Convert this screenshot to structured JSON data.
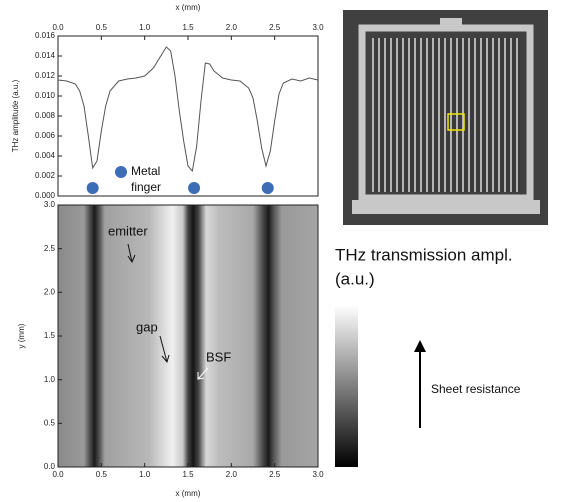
{
  "chart_data": [
    {
      "type": "line",
      "xlabel": "x (mm)",
      "ylabel": "THz amplitude (a.u.)",
      "color": "#555555",
      "x": [
        0,
        0.1,
        0.2,
        0.25,
        0.3,
        0.35,
        0.4,
        0.45,
        0.5,
        0.55,
        0.6,
        0.7,
        0.8,
        0.9,
        1.0,
        1.1,
        1.2,
        1.25,
        1.3,
        1.35,
        1.4,
        1.45,
        1.5,
        1.55,
        1.6,
        1.65,
        1.7,
        1.75,
        1.8,
        1.9,
        2.0,
        2.1,
        2.2,
        2.25,
        2.3,
        2.35,
        2.4,
        2.45,
        2.5,
        2.55,
        2.6,
        2.7,
        2.8,
        2.9,
        3.0
      ],
      "values": [
        0.0116,
        0.0115,
        0.0112,
        0.0105,
        0.009,
        0.006,
        0.0028,
        0.0035,
        0.0065,
        0.009,
        0.0105,
        0.0115,
        0.0117,
        0.0118,
        0.012,
        0.0128,
        0.0142,
        0.0149,
        0.0145,
        0.012,
        0.0085,
        0.0055,
        0.003,
        0.0025,
        0.005,
        0.0095,
        0.0133,
        0.0132,
        0.0125,
        0.0118,
        0.0116,
        0.0115,
        0.0108,
        0.0098,
        0.0075,
        0.0048,
        0.003,
        0.0045,
        0.0075,
        0.0102,
        0.0113,
        0.0117,
        0.0115,
        0.0118,
        0.0116
      ],
      "markers": {
        "x": [
          0.4,
          1.57,
          2.42
        ],
        "y": [
          0.0008,
          0.0008,
          0.0008
        ],
        "color": "#3d6db5"
      },
      "annotation": [
        "Metal",
        "finger"
      ],
      "xlim": [
        0,
        3
      ],
      "ylim": [
        0,
        0.016
      ],
      "xticks": [
        {
          "value": 0,
          "label": "0.0"
        },
        0.5,
        {
          "value": 1,
          "label": "1.0"
        },
        1.5,
        {
          "value": 2,
          "label": "2.0"
        },
        2.5,
        {
          "value": 3,
          "label": "3.0"
        }
      ],
      "yticks": [
        {
          "value": 0,
          "label": "0.000"
        },
        0.002,
        0.004,
        0.006,
        0.008,
        {
          "value": 0.01,
          "label": "0.010"
        },
        0.012,
        0.014,
        0.016
      ]
    },
    {
      "type": "image",
      "xlabel": "x (mm)",
      "ylabel": "y (mm)",
      "annotations": [
        "emitter",
        "gap",
        "BSF"
      ],
      "colorbar_label": [
        "THz transmission ampl.",
        "(a.u.)"
      ],
      "arrow_label": "Sheet resistance",
      "xlim": [
        0,
        3
      ],
      "ylim": [
        0,
        3
      ],
      "xticks": [
        {
          "value": 0,
          "label": "0.0"
        },
        0.5,
        {
          "value": 1,
          "label": "1.0"
        },
        1.5,
        {
          "value": 2,
          "label": "2.0"
        },
        2.5,
        {
          "value": 3,
          "label": "3.0"
        }
      ],
      "yticks": [
        {
          "value": 0,
          "label": "0.0"
        },
        0.5,
        {
          "value": 1,
          "label": "1.0"
        },
        1.5,
        {
          "value": 2,
          "label": "2.0"
        },
        2.5,
        {
          "value": 3,
          "label": "3.0"
        }
      ]
    }
  ]
}
